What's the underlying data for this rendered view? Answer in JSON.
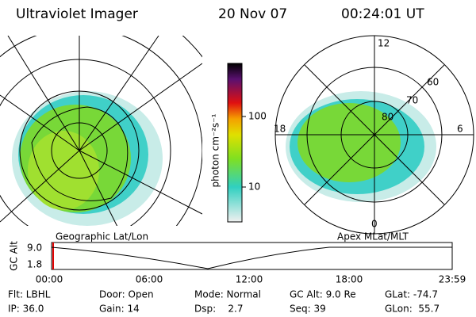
{
  "header": {
    "instrument": "Ultraviolet Imager",
    "date": "20 Nov 07",
    "time": "00:24:01 UT"
  },
  "left_panel": {
    "label": "Geographic Lat/Lon"
  },
  "right_panel": {
    "label": "Apex MLat/MLT",
    "mlt_labels": [
      "12",
      "18",
      "6",
      "0"
    ],
    "lat_labels": [
      "80",
      "70",
      "60"
    ]
  },
  "colorbar": {
    "label": "photon cm⁻²s⁻¹",
    "ticks": [
      "100",
      "10"
    ]
  },
  "altitude_plot": {
    "ylabel": "GC Alt",
    "yticks": [
      "9.0",
      "1.8"
    ],
    "xticks": [
      "00:00",
      "06:00",
      "12:00",
      "18:00",
      "23:59"
    ]
  },
  "info": {
    "rows": [
      [
        "Flt: LBHL",
        "Door: Open",
        "Mode: Normal",
        "GC Alt: 9.0 Re",
        "GLat: -74.7"
      ],
      [
        "IP: 36.0",
        "Gain: 14",
        "Dsp:    2.7",
        "Seq: 39",
        "GLon:  55.7"
      ]
    ]
  }
}
